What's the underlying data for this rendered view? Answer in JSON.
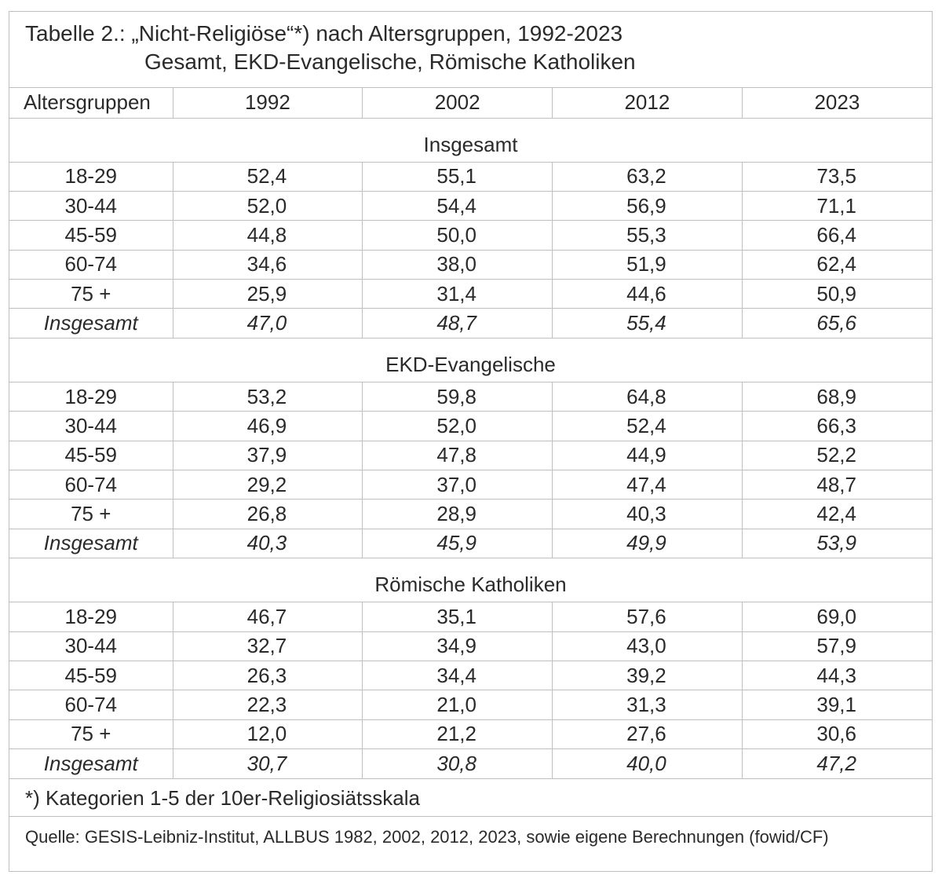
{
  "title": {
    "line1": "Tabelle 2.: „Nicht-Religiöse“*) nach Altersgruppen, 1992-2023",
    "line2": "Gesamt, EKD-Evangelische, Römische Katholiken"
  },
  "header": {
    "age_label": "Altersgruppen",
    "years": [
      "1992",
      "2002",
      "2012",
      "2023"
    ]
  },
  "sections": [
    {
      "label": "Insgesamt",
      "rows": [
        {
          "age": "18-29",
          "values": [
            "52,4",
            "55,1",
            "63,2",
            "73,5"
          ]
        },
        {
          "age": "30-44",
          "values": [
            "52,0",
            "54,4",
            "56,9",
            "71,1"
          ]
        },
        {
          "age": "45-59",
          "values": [
            "44,8",
            "50,0",
            "55,3",
            "66,4"
          ]
        },
        {
          "age": "60-74",
          "values": [
            "34,6",
            "38,0",
            "51,9",
            "62,4"
          ]
        },
        {
          "age": "75 +",
          "values": [
            "25,9",
            "31,4",
            "44,6",
            "50,9"
          ]
        },
        {
          "age": "Insgesamt",
          "values": [
            "47,0",
            "48,7",
            "55,4",
            "65,6"
          ]
        }
      ]
    },
    {
      "label": "EKD-Evangelische",
      "rows": [
        {
          "age": "18-29",
          "values": [
            "53,2",
            "59,8",
            "64,8",
            "68,9"
          ]
        },
        {
          "age": "30-44",
          "values": [
            "46,9",
            "52,0",
            "52,4",
            "66,3"
          ]
        },
        {
          "age": "45-59",
          "values": [
            "37,9",
            "47,8",
            "44,9",
            "52,2"
          ]
        },
        {
          "age": "60-74",
          "values": [
            "29,2",
            "37,0",
            "47,4",
            "48,7"
          ]
        },
        {
          "age": "75 +",
          "values": [
            "26,8",
            "28,9",
            "40,3",
            "42,4"
          ]
        },
        {
          "age": "Insgesamt",
          "values": [
            "40,3",
            "45,9",
            "49,9",
            "53,9"
          ]
        }
      ]
    },
    {
      "label": "Römische Katholiken",
      "rows": [
        {
          "age": "18-29",
          "values": [
            "46,7",
            "35,1",
            "57,6",
            "69,0"
          ]
        },
        {
          "age": "30-44",
          "values": [
            "32,7",
            "34,9",
            "43,0",
            "57,9"
          ]
        },
        {
          "age": "45-59",
          "values": [
            "26,3",
            "34,4",
            "39,2",
            "44,3"
          ]
        },
        {
          "age": "60-74",
          "values": [
            "22,3",
            "21,0",
            "31,3",
            "39,1"
          ]
        },
        {
          "age": "75 +",
          "values": [
            "12,0",
            "21,2",
            "27,6",
            "30,6"
          ]
        },
        {
          "age": "Insgesamt",
          "values": [
            "30,7",
            "30,8",
            "40,0",
            "47,2"
          ]
        }
      ]
    }
  ],
  "footnote": "*) Kategorien 1-5 der 10er-Religiosiätsskala",
  "source": "Quelle: GESIS-Leibniz-Institut, ALLBUS 1982, 2002, 2012, 2023, sowie eigene Berechnungen (fowid/CF)"
}
